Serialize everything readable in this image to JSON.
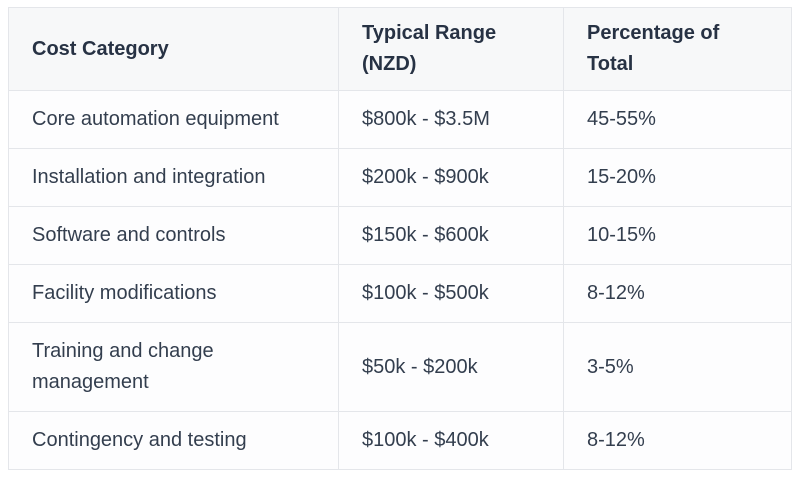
{
  "chart_data": {
    "type": "table",
    "title": "",
    "columns": [
      "Cost Category",
      "Typical Range (NZD)",
      "Percentage of Total"
    ],
    "rows": [
      [
        "Core automation equipment",
        "$800k - $3.5M",
        "45-55%"
      ],
      [
        "Installation and integration",
        "$200k - $900k",
        "15-20%"
      ],
      [
        "Software and controls",
        "$150k - $600k",
        "10-15%"
      ],
      [
        "Facility modifications",
        "$100k - $500k",
        "8-12%"
      ],
      [
        "Training and change management",
        "$50k - $200k",
        "3-5%"
      ],
      [
        "Contingency and testing",
        "$100k - $400k",
        "8-12%"
      ]
    ],
    "layout": {
      "grid": "all-borders",
      "header_position": "top"
    }
  },
  "colors": {
    "header_background": "#f7f8f9",
    "body_background": "#fdfdfe",
    "border": "#e4e6ea",
    "header_text": "#273244",
    "body_text": "#333e4e"
  }
}
